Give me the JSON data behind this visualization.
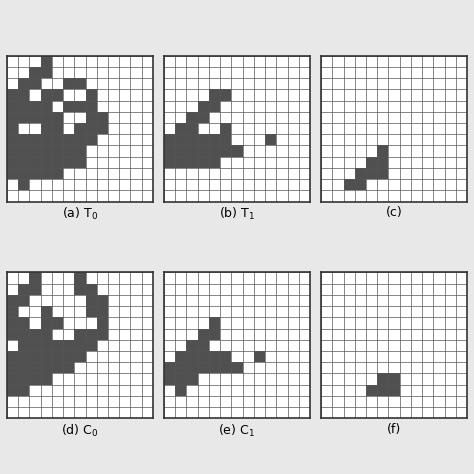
{
  "grids": {
    "T0": [
      [
        0,
        0,
        0,
        1,
        0,
        0,
        0,
        0,
        0,
        0,
        0,
        0,
        0
      ],
      [
        0,
        0,
        1,
        1,
        0,
        0,
        0,
        0,
        0,
        0,
        0,
        0,
        0
      ],
      [
        0,
        1,
        1,
        0,
        0,
        1,
        1,
        0,
        0,
        0,
        0,
        0,
        0
      ],
      [
        1,
        1,
        0,
        1,
        1,
        0,
        0,
        1,
        0,
        0,
        0,
        0,
        0
      ],
      [
        1,
        1,
        1,
        1,
        0,
        1,
        1,
        1,
        0,
        0,
        0,
        0,
        0
      ],
      [
        1,
        1,
        1,
        1,
        1,
        0,
        0,
        1,
        1,
        0,
        0,
        0,
        0
      ],
      [
        1,
        0,
        0,
        1,
        1,
        0,
        1,
        1,
        1,
        0,
        0,
        0,
        0
      ],
      [
        1,
        1,
        1,
        1,
        1,
        1,
        1,
        1,
        0,
        0,
        0,
        0,
        0
      ],
      [
        1,
        1,
        1,
        1,
        1,
        1,
        1,
        0,
        0,
        0,
        0,
        0,
        0
      ],
      [
        1,
        1,
        1,
        1,
        1,
        1,
        1,
        0,
        0,
        0,
        0,
        0,
        0
      ],
      [
        1,
        1,
        1,
        1,
        1,
        0,
        0,
        0,
        0,
        0,
        0,
        0,
        0
      ],
      [
        0,
        1,
        0,
        0,
        0,
        0,
        0,
        0,
        0,
        0,
        0,
        0,
        0
      ],
      [
        0,
        0,
        0,
        0,
        0,
        0,
        0,
        0,
        0,
        0,
        0,
        0,
        0
      ]
    ],
    "T1": [
      [
        0,
        0,
        0,
        0,
        0,
        0,
        0,
        0,
        0,
        0,
        0,
        0,
        0
      ],
      [
        0,
        0,
        0,
        0,
        0,
        0,
        0,
        0,
        0,
        0,
        0,
        0,
        0
      ],
      [
        0,
        0,
        0,
        0,
        0,
        0,
        0,
        0,
        0,
        0,
        0,
        0,
        0
      ],
      [
        0,
        0,
        0,
        0,
        1,
        1,
        0,
        0,
        0,
        0,
        0,
        0,
        0
      ],
      [
        0,
        0,
        0,
        1,
        1,
        0,
        0,
        0,
        0,
        0,
        0,
        0,
        0
      ],
      [
        0,
        0,
        1,
        1,
        0,
        0,
        0,
        0,
        0,
        0,
        0,
        0,
        0
      ],
      [
        0,
        1,
        1,
        0,
        0,
        1,
        0,
        0,
        0,
        0,
        0,
        0,
        0
      ],
      [
        1,
        1,
        1,
        1,
        1,
        1,
        0,
        0,
        0,
        1,
        0,
        0,
        0
      ],
      [
        1,
        1,
        1,
        1,
        1,
        1,
        1,
        0,
        0,
        0,
        0,
        0,
        0
      ],
      [
        1,
        1,
        1,
        1,
        1,
        0,
        0,
        0,
        0,
        0,
        0,
        0,
        0
      ],
      [
        0,
        0,
        0,
        0,
        0,
        0,
        0,
        0,
        0,
        0,
        0,
        0,
        0
      ],
      [
        0,
        0,
        0,
        0,
        0,
        0,
        0,
        0,
        0,
        0,
        0,
        0,
        0
      ],
      [
        0,
        0,
        0,
        0,
        0,
        0,
        0,
        0,
        0,
        0,
        0,
        0,
        0
      ]
    ],
    "T2": [
      [
        0,
        0,
        0,
        0,
        0,
        0,
        0,
        0,
        0,
        0,
        0,
        0,
        0
      ],
      [
        0,
        0,
        0,
        0,
        0,
        0,
        0,
        0,
        0,
        0,
        0,
        0,
        0
      ],
      [
        0,
        0,
        0,
        0,
        0,
        0,
        0,
        0,
        0,
        0,
        0,
        0,
        0
      ],
      [
        0,
        0,
        0,
        0,
        0,
        0,
        0,
        0,
        0,
        0,
        0,
        0,
        0
      ],
      [
        0,
        0,
        0,
        0,
        0,
        0,
        0,
        0,
        0,
        0,
        0,
        0,
        0
      ],
      [
        0,
        0,
        0,
        0,
        0,
        0,
        0,
        0,
        0,
        0,
        0,
        0,
        0
      ],
      [
        0,
        0,
        0,
        0,
        0,
        0,
        0,
        0,
        0,
        0,
        0,
        0,
        0
      ],
      [
        0,
        0,
        0,
        0,
        0,
        0,
        0,
        0,
        0,
        0,
        0,
        0,
        0
      ],
      [
        0,
        0,
        0,
        0,
        0,
        1,
        0,
        0,
        0,
        0,
        0,
        0,
        0
      ],
      [
        0,
        0,
        0,
        0,
        1,
        1,
        0,
        0,
        0,
        0,
        0,
        0,
        0
      ],
      [
        0,
        0,
        0,
        1,
        1,
        1,
        0,
        0,
        0,
        0,
        0,
        0,
        0
      ],
      [
        0,
        0,
        1,
        1,
        0,
        0,
        0,
        0,
        0,
        0,
        0,
        0,
        0
      ],
      [
        0,
        0,
        0,
        0,
        0,
        0,
        0,
        0,
        0,
        0,
        0,
        0,
        0
      ]
    ],
    "C0": [
      [
        0,
        0,
        1,
        0,
        0,
        0,
        1,
        0,
        0,
        0,
        0,
        0,
        0
      ],
      [
        0,
        1,
        1,
        0,
        0,
        0,
        1,
        1,
        0,
        0,
        0,
        0,
        0
      ],
      [
        1,
        1,
        0,
        0,
        0,
        0,
        0,
        1,
        1,
        0,
        0,
        0,
        0
      ],
      [
        1,
        0,
        0,
        1,
        0,
        0,
        0,
        1,
        1,
        0,
        0,
        0,
        0
      ],
      [
        1,
        1,
        0,
        1,
        1,
        0,
        0,
        0,
        1,
        0,
        0,
        0,
        0
      ],
      [
        1,
        1,
        1,
        1,
        0,
        0,
        1,
        1,
        1,
        0,
        0,
        0,
        0
      ],
      [
        0,
        1,
        1,
        1,
        1,
        1,
        1,
        1,
        0,
        0,
        0,
        0,
        0
      ],
      [
        1,
        1,
        1,
        1,
        1,
        1,
        1,
        0,
        0,
        0,
        0,
        0,
        0
      ],
      [
        1,
        1,
        1,
        1,
        1,
        1,
        0,
        0,
        0,
        0,
        0,
        0,
        0
      ],
      [
        1,
        1,
        1,
        1,
        0,
        0,
        0,
        0,
        0,
        0,
        0,
        0,
        0
      ],
      [
        1,
        1,
        0,
        0,
        0,
        0,
        0,
        0,
        0,
        0,
        0,
        0,
        0
      ],
      [
        0,
        0,
        0,
        0,
        0,
        0,
        0,
        0,
        0,
        0,
        0,
        0,
        0
      ],
      [
        0,
        0,
        0,
        0,
        0,
        0,
        0,
        0,
        0,
        0,
        0,
        0,
        0
      ]
    ],
    "C1": [
      [
        0,
        0,
        0,
        0,
        0,
        0,
        0,
        0,
        0,
        0,
        0,
        0,
        0
      ],
      [
        0,
        0,
        0,
        0,
        0,
        0,
        0,
        0,
        0,
        0,
        0,
        0,
        0
      ],
      [
        0,
        0,
        0,
        0,
        0,
        0,
        0,
        0,
        0,
        0,
        0,
        0,
        0
      ],
      [
        0,
        0,
        0,
        0,
        0,
        0,
        0,
        0,
        0,
        0,
        0,
        0,
        0
      ],
      [
        0,
        0,
        0,
        0,
        1,
        0,
        0,
        0,
        0,
        0,
        0,
        0,
        0
      ],
      [
        0,
        0,
        0,
        1,
        1,
        0,
        0,
        0,
        0,
        0,
        0,
        0,
        0
      ],
      [
        0,
        0,
        1,
        1,
        0,
        0,
        0,
        0,
        0,
        0,
        0,
        0,
        0
      ],
      [
        0,
        1,
        1,
        1,
        1,
        1,
        0,
        0,
        1,
        0,
        0,
        0,
        0
      ],
      [
        1,
        1,
        1,
        1,
        1,
        1,
        1,
        0,
        0,
        0,
        0,
        0,
        0
      ],
      [
        1,
        1,
        1,
        0,
        0,
        0,
        0,
        0,
        0,
        0,
        0,
        0,
        0
      ],
      [
        0,
        1,
        0,
        0,
        0,
        0,
        0,
        0,
        0,
        0,
        0,
        0,
        0
      ],
      [
        0,
        0,
        0,
        0,
        0,
        0,
        0,
        0,
        0,
        0,
        0,
        0,
        0
      ],
      [
        0,
        0,
        0,
        0,
        0,
        0,
        0,
        0,
        0,
        0,
        0,
        0,
        0
      ]
    ],
    "C2": [
      [
        0,
        0,
        0,
        0,
        0,
        0,
        0,
        0,
        0,
        0,
        0,
        0,
        0
      ],
      [
        0,
        0,
        0,
        0,
        0,
        0,
        0,
        0,
        0,
        0,
        0,
        0,
        0
      ],
      [
        0,
        0,
        0,
        0,
        0,
        0,
        0,
        0,
        0,
        0,
        0,
        0,
        0
      ],
      [
        0,
        0,
        0,
        0,
        0,
        0,
        0,
        0,
        0,
        0,
        0,
        0,
        0
      ],
      [
        0,
        0,
        0,
        0,
        0,
        0,
        0,
        0,
        0,
        0,
        0,
        0,
        0
      ],
      [
        0,
        0,
        0,
        0,
        0,
        0,
        0,
        0,
        0,
        0,
        0,
        0,
        0
      ],
      [
        0,
        0,
        0,
        0,
        0,
        0,
        0,
        0,
        0,
        0,
        0,
        0,
        0
      ],
      [
        0,
        0,
        0,
        0,
        0,
        0,
        0,
        0,
        0,
        0,
        0,
        0,
        0
      ],
      [
        0,
        0,
        0,
        0,
        0,
        0,
        0,
        0,
        0,
        0,
        0,
        0,
        0
      ],
      [
        0,
        0,
        0,
        0,
        0,
        1,
        1,
        0,
        0,
        0,
        0,
        0,
        0
      ],
      [
        0,
        0,
        0,
        0,
        1,
        1,
        1,
        0,
        0,
        0,
        0,
        0,
        0
      ],
      [
        0,
        0,
        0,
        0,
        0,
        0,
        0,
        0,
        0,
        0,
        0,
        0,
        0
      ],
      [
        0,
        0,
        0,
        0,
        0,
        0,
        0,
        0,
        0,
        0,
        0,
        0,
        0
      ]
    ]
  },
  "labels": {
    "T0": "(a) T$_0$",
    "T1": "(b) T$_1$",
    "T2": "(c)",
    "C0": "(d) C$_0$",
    "C1": "(e) C$_1$",
    "C2": "(f)"
  },
  "grid_color": "#555555",
  "fill_color": "#505050",
  "bg_color": "#f0f0f0",
  "n_rows": 13,
  "n_cols": 13,
  "label_fontsize": 9,
  "figsize": [
    4.74,
    4.74
  ],
  "dpi": 100
}
